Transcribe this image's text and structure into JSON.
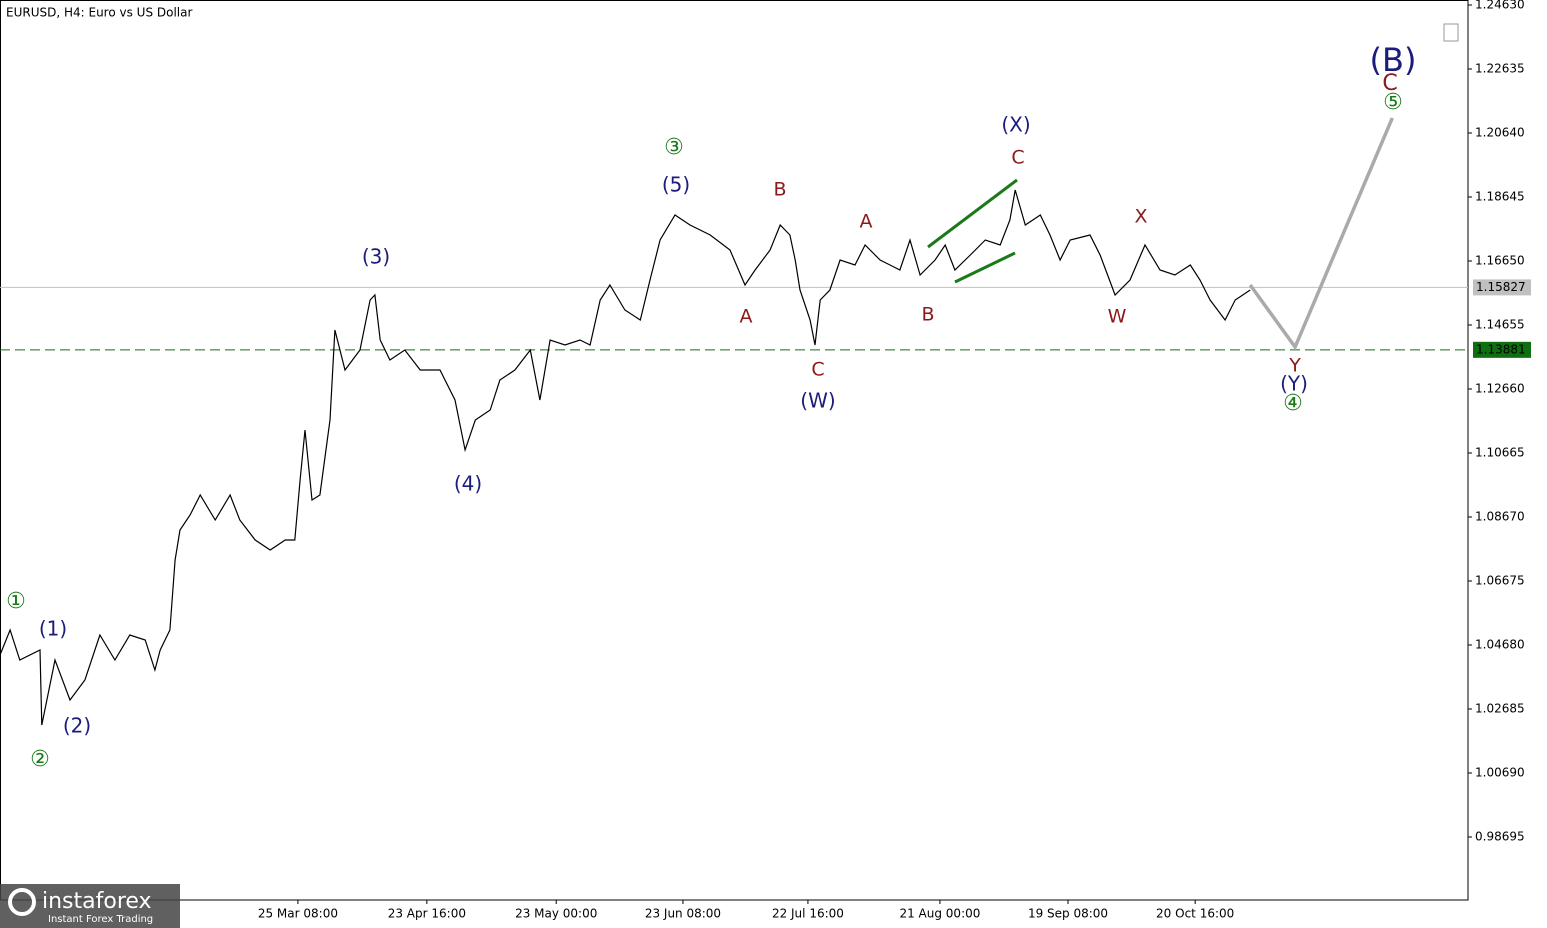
{
  "chart_data": {
    "type": "line",
    "title": "EURUSD, H4:  Euro vs US Dollar",
    "series": [
      {
        "color": "#000000",
        "x": [
          0,
          2.3,
          4.5,
          9.1,
          9.5,
          12.5,
          15.9,
          19.3,
          22.7,
          26.1,
          29.5,
          33.0,
          35.2,
          36.4,
          38.6,
          39.8,
          40.9,
          43.2,
          45.5,
          48.9,
          52.3,
          54.5,
          58.0,
          61.4,
          64.8,
          67.0,
          68.2,
          69.3,
          70.9,
          72.7,
          75.0,
          76.1,
          78.4,
          81.8,
          84.1,
          85.2,
          86.4,
          88.6,
          92.0,
          95.5,
          100.0,
          103.4,
          105.7,
          108.0,
          111.4,
          113.6,
          117.0,
          120.5,
          122.7,
          125.0,
          128.4,
          131.8,
          134.1,
          136.4,
          138.6,
          142.0,
          145.5,
          147.7,
          150.0,
          153.4,
          156.8,
          161.4,
          165.9,
          169.3,
          171.6,
          175.0,
          177.3,
          179.5,
          180.7,
          181.8,
          184.1,
          185.2,
          186.4,
          188.6,
          190.9,
          194.3,
          196.6,
          200.0,
          204.5,
          206.8,
          209.1,
          212.5,
          214.8,
          217.0,
          220.5,
          223.9,
          227.3,
          229.5,
          230.7,
          233.0,
          236.4,
          238.6,
          240.9,
          243.2,
          247.7,
          250.0,
          253.4,
          256.8,
          260.2,
          263.6,
          267.0,
          270.5,
          272.7,
          275.0,
          278.4,
          280.7,
          284.1
        ],
        "values": [
          1.04368,
          1.05148,
          1.04212,
          1.04524,
          1.02186,
          1.04212,
          1.02966,
          1.03589,
          1.04992,
          1.04212,
          1.04992,
          1.04836,
          1.03901,
          1.04524,
          1.05148,
          1.0733,
          1.08265,
          1.08732,
          1.09356,
          1.08577,
          1.09356,
          1.08577,
          1.07953,
          1.07641,
          1.07953,
          1.07953,
          1.09823,
          1.11382,
          1.092,
          1.09356,
          1.11694,
          1.14499,
          1.13252,
          1.13876,
          1.15434,
          1.1559,
          1.14188,
          1.13564,
          1.13876,
          1.13252,
          1.13252,
          1.12317,
          1.10759,
          1.11694,
          1.12005,
          1.12941,
          1.13252,
          1.13876,
          1.12317,
          1.14188,
          1.14032,
          1.14188,
          1.14032,
          1.15434,
          1.15902,
          1.15123,
          1.14811,
          1.16058,
          1.17305,
          1.18084,
          1.17772,
          1.17461,
          1.16993,
          1.15902,
          1.1637,
          1.16993,
          1.17772,
          1.17461,
          1.16681,
          1.15746,
          1.14811,
          1.14032,
          1.15434,
          1.15746,
          1.16681,
          1.16525,
          1.17149,
          1.16681,
          1.1637,
          1.17305,
          1.16214,
          1.16681,
          1.17149,
          1.1637,
          1.16837,
          1.17305,
          1.17149,
          1.17928,
          1.18863,
          1.17772,
          1.18084,
          1.17461,
          1.16681,
          1.17305,
          1.17461,
          1.16837,
          1.1559,
          1.16058,
          1.17149,
          1.1637,
          1.16214,
          1.16525,
          1.16058,
          1.15434,
          1.14811,
          1.15434,
          1.15746
        ]
      },
      {
        "color": "#aaaaaa",
        "x": [
          284.1,
          294.3,
          316.4
        ],
        "values": [
          1.15902,
          1.1397,
          1.21108
        ]
      }
    ],
    "xlim": [
      0,
      333.6
    ],
    "ylim": [
      0.96731,
      1.24786
    ],
    "xticks": [
      {
        "value": 67.7,
        "label": "25 Mar 08:00"
      },
      {
        "value": 97.0,
        "label": "23 Apr 16:00"
      },
      {
        "value": 126.4,
        "label": "23 May 00:00"
      },
      {
        "value": 155.2,
        "label": "23 Jun 08:00"
      },
      {
        "value": 183.6,
        "label": "22 Jul 16:00"
      },
      {
        "value": 213.6,
        "label": "21 Aug 00:00"
      },
      {
        "value": 242.7,
        "label": "19 Sep 08:00"
      },
      {
        "value": 271.6,
        "label": "20 Oct 16:00"
      }
    ],
    "yticks": [
      {
        "value": 1.2463,
        "label": "1.24630"
      },
      1.22635,
      {
        "value": 1.2064,
        "label": "1.20640"
      },
      1.18645,
      {
        "value": 1.1665,
        "label": "1.16650"
      },
      1.14655,
      {
        "value": 1.1266,
        "label": "1.12660"
      },
      1.10665,
      {
        "value": 1.0867,
        "label": "1.08670"
      },
      1.06675,
      {
        "value": 1.0468,
        "label": "1.04680"
      },
      1.02685,
      {
        "value": 1.0069,
        "label": "1.00690"
      },
      0.98695
    ],
    "current_price": 1.15827,
    "level": 1.13881,
    "annotations": [
      {
        "text": "①",
        "color": "#1a7a1a"
      },
      {
        "text": "②",
        "color": "#1a7a1a"
      },
      {
        "text": "③",
        "color": "#1a7a1a"
      },
      {
        "text": "④",
        "color": "#1a7a1a"
      },
      {
        "text": "⑤",
        "color": "#1a7a1a"
      },
      {
        "text": "(1)",
        "color": "#1c1c7c"
      },
      {
        "text": "(2)",
        "color": "#1c1c7c"
      },
      {
        "text": "(3)",
        "color": "#1c1c7c"
      },
      {
        "text": "(4)",
        "color": "#1c1c7c"
      },
      {
        "text": "(5)",
        "color": "#1c1c7c"
      },
      {
        "text": "(W)",
        "color": "#1c1c7c"
      },
      {
        "text": "(X)",
        "color": "#1c1c7c"
      },
      {
        "text": "(Y)",
        "color": "#1c1c7c"
      },
      {
        "text": "(B)",
        "color": "#1c1c7c"
      },
      {
        "text": "A",
        "color": "#8b1a1a"
      },
      {
        "text": "B",
        "color": "#8b1a1a"
      },
      {
        "text": "C",
        "color": "#8b1a1a"
      },
      {
        "text": "A",
        "color": "#8b1a1a"
      },
      {
        "text": "B",
        "color": "#8b1a1a"
      },
      {
        "text": "C",
        "color": "#8b1a1a"
      },
      {
        "text": "X",
        "color": "#8b1a1a"
      },
      {
        "text": "W",
        "color": "#8b1a1a"
      },
      {
        "text": "Y",
        "color": "#8b1a1a"
      },
      {
        "text": "C",
        "color": "#8b1a1a"
      }
    ]
  },
  "logo": {
    "name": "instaforex",
    "tagline": "Instant Forex Trading"
  }
}
